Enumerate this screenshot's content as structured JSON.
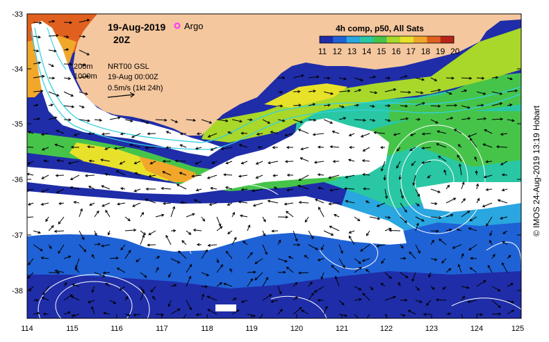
{
  "map": {
    "date": "19-Aug-2019",
    "time": "20Z",
    "argo_label": "Argo",
    "colorbar_title": "4h comp, p50, All Sats",
    "colorbar_ticks": [
      "11",
      "12",
      "13",
      "14",
      "15",
      "16",
      "17",
      "18",
      "19",
      "20"
    ],
    "colorbar_colors": [
      "#1f2da8",
      "#1f62d6",
      "#2aa6e0",
      "#29c7a4",
      "#46c44a",
      "#a9d82a",
      "#e8e12a",
      "#f0a72a",
      "#e0601f",
      "#b8241a"
    ],
    "legend_200m": "200m",
    "legend_1000m": "1000m",
    "legend_gsl": "NRT00 GSL",
    "legend_time": "19-Aug 00:00Z",
    "legend_scale": "0.5m/s (1kt 24h)",
    "credit": "© IMOS 24-Aug-2019 13:19 Hobart",
    "x_ticks": [
      "114",
      "115",
      "116",
      "117",
      "118",
      "119",
      "120",
      "121",
      "122",
      "123",
      "124",
      "125"
    ],
    "y_ticks": [
      "-33",
      "-34",
      "-35",
      "-36",
      "-37",
      "-38"
    ],
    "colors": {
      "land": "#f5c79e",
      "cloud": "#ffffff",
      "isobath": "#35d0e0",
      "contour": "#ffffff",
      "argo": "#ff33ff"
    }
  }
}
